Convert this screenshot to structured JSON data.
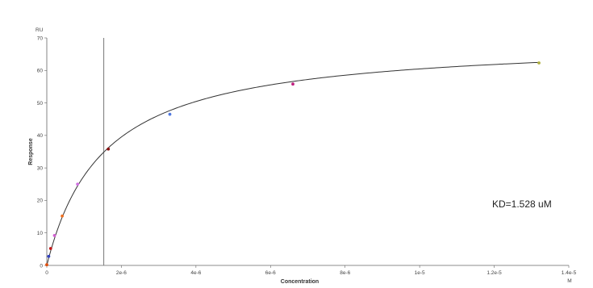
{
  "chart_data": {
    "type": "scatter",
    "title": "",
    "xlabel": "Concentration",
    "ylabel": "Response",
    "x_unit": "M",
    "y_unit": "RU",
    "xlim": [
      0,
      1.4e-05
    ],
    "ylim": [
      0,
      70
    ],
    "x_tick_labels": [
      "0",
      "2e-6",
      "4e-6",
      "6e-6",
      "8e-6",
      "1e-5",
      "1.2e-5",
      "1.4e-5"
    ],
    "y_tick_labels": [
      "0",
      "10",
      "20",
      "30",
      "40",
      "50",
      "60",
      "70"
    ],
    "grid": false,
    "legend": "none",
    "points": [
      {
        "x": 0,
        "y": 0.2,
        "color": "#e05010"
      },
      {
        "x": 5.15e-08,
        "y": 2.8,
        "color": "#3040c0"
      },
      {
        "x": 1.03e-07,
        "y": 5.2,
        "color": "#c01818"
      },
      {
        "x": 2.06e-07,
        "y": 9.2,
        "color": "#d060d0"
      },
      {
        "x": 4.13e-07,
        "y": 15.2,
        "color": "#f07020"
      },
      {
        "x": 8.25e-07,
        "y": 25.0,
        "color": "#d070e0"
      },
      {
        "x": 1.65e-06,
        "y": 35.8,
        "color": "#8b1010"
      },
      {
        "x": 3.3e-06,
        "y": 46.5,
        "color": "#5078e0"
      },
      {
        "x": 6.6e-06,
        "y": 55.8,
        "color": "#c02080"
      },
      {
        "x": 1.32e-05,
        "y": 62.3,
        "color": "#b0b040"
      }
    ],
    "fit_curve": {
      "model": "steady-state affinity",
      "Rmax": 69.7,
      "KD": 1.528e-06,
      "color": "#333333"
    },
    "vertical_line": {
      "x": 1.528e-06,
      "color": "#777777"
    },
    "annotation": "KD=1.528 uM"
  }
}
